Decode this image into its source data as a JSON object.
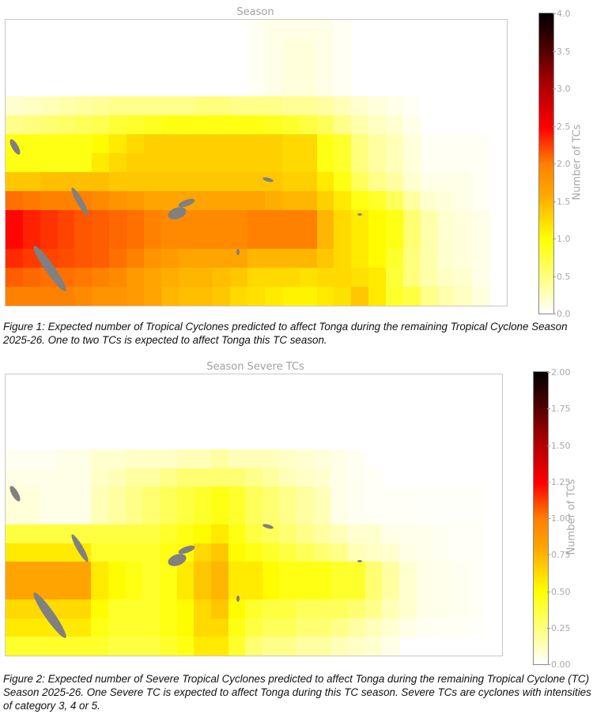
{
  "figures": [
    {
      "id": "fig1",
      "title": "Season",
      "caption": "Figure 1: Expected number of Tropical Cyclones predicted to affect Tonga during the remaining Tropical Cyclone Season 2025-26. One to two TCs is expected to affect Tonga this TC season.",
      "colorbar": {
        "label": "Number of TCs",
        "min": 0.0,
        "max": 4.0,
        "ticks": [
          "4.0",
          "3.5",
          "3.0",
          "2.5",
          "2.0",
          "1.5",
          "1.0",
          "0.5",
          "0.0"
        ]
      }
    },
    {
      "id": "fig2",
      "title": "Season Severe TCs",
      "caption": "Figure 2: Expected number of Severe Tropical Cyclones predicted to affect Tonga during the remaining Tropical Cyclone (TC) Season 2025-26. One Severe TC is expected to affect Tonga during this TC season. Severe TCs are cyclones with intensities of category 3, 4 or 5.",
      "colorbar": {
        "label": "Number of TCs",
        "min": 0.0,
        "max": 2.0,
        "ticks": [
          "2.00",
          "1.75",
          "1.50",
          "1.25",
          "1.00",
          "0.75",
          "0.50",
          "0.25",
          "0.00"
        ]
      }
    }
  ],
  "chart_data": [
    {
      "type": "heatmap",
      "title": "Season",
      "colorbar_label": "Number of TCs",
      "vmin": 0.0,
      "vmax": 4.0,
      "colormap": "hot_r",
      "note": "Gridded expected TC counts over SW Pacific; rows top-to-bottom, columns left-to-right (approx. 0 = blank/white).",
      "grid": [
        [
          0,
          0,
          0,
          0,
          0,
          0,
          0,
          0,
          0,
          0,
          0,
          0,
          0,
          0,
          0.05,
          0.1,
          0.1,
          0.1,
          0.1,
          0.05,
          0,
          0,
          0,
          0,
          0,
          0,
          0,
          0,
          0
        ],
        [
          0,
          0,
          0,
          0,
          0,
          0,
          0,
          0,
          0,
          0,
          0,
          0,
          0,
          0,
          0.05,
          0.1,
          0.15,
          0.15,
          0.1,
          0.05,
          0,
          0,
          0,
          0,
          0,
          0,
          0,
          0,
          0
        ],
        [
          0,
          0,
          0,
          0,
          0,
          0,
          0,
          0,
          0,
          0,
          0,
          0,
          0,
          0,
          0.05,
          0.1,
          0.15,
          0.15,
          0.1,
          0.05,
          0,
          0,
          0,
          0,
          0,
          0,
          0,
          0,
          0
        ],
        [
          0,
          0,
          0,
          0,
          0,
          0,
          0,
          0,
          0,
          0,
          0,
          0,
          0,
          0,
          0.05,
          0.1,
          0.15,
          0.15,
          0.1,
          0.05,
          0,
          0,
          0,
          0,
          0,
          0,
          0,
          0,
          0
        ],
        [
          0.2,
          0.25,
          0.3,
          0.35,
          0.4,
          0.45,
          0.5,
          0.5,
          0.5,
          0.5,
          0.5,
          0.55,
          0.55,
          0.5,
          0.5,
          0.5,
          0.45,
          0.45,
          0.4,
          0.3,
          0.2,
          0.15,
          0.1,
          0.05,
          0,
          0,
          0,
          0,
          0
        ],
        [
          0.5,
          0.55,
          0.6,
          0.65,
          0.7,
          0.75,
          0.85,
          0.9,
          0.95,
          1.0,
          1.0,
          1.0,
          1.0,
          1.0,
          1.0,
          0.95,
          0.9,
          0.8,
          0.7,
          0.5,
          0.35,
          0.25,
          0.2,
          0.1,
          0,
          0,
          0,
          0,
          0
        ],
        [
          1.0,
          1.0,
          1.0,
          1.0,
          1.0,
          1.1,
          1.2,
          1.3,
          1.35,
          1.35,
          1.35,
          1.35,
          1.35,
          1.35,
          1.35,
          1.35,
          1.3,
          1.3,
          1.0,
          0.9,
          0.55,
          0.4,
          0.3,
          0.15,
          0.05,
          0.05,
          0.05,
          0.05,
          0
        ],
        [
          1.0,
          1.0,
          1.0,
          1.0,
          1.0,
          1.2,
          1.3,
          1.35,
          1.35,
          1.35,
          1.35,
          1.35,
          1.35,
          1.35,
          1.35,
          1.35,
          1.3,
          1.3,
          1.0,
          0.9,
          0.55,
          0.4,
          0.3,
          0.15,
          0.05,
          0.05,
          0.05,
          0.05,
          0
        ],
        [
          1.4,
          1.4,
          1.45,
          1.45,
          1.45,
          1.45,
          1.4,
          1.4,
          1.4,
          1.4,
          1.4,
          1.4,
          1.4,
          1.4,
          1.4,
          1.4,
          1.35,
          1.35,
          1.2,
          1.0,
          0.7,
          0.5,
          0.4,
          0.2,
          0.1,
          0.1,
          0.1,
          0.05,
          0
        ],
        [
          1.9,
          1.85,
          1.8,
          1.8,
          1.8,
          1.75,
          1.7,
          1.65,
          1.6,
          1.6,
          1.6,
          1.6,
          1.6,
          1.6,
          1.6,
          1.55,
          1.5,
          1.5,
          1.35,
          1.2,
          1.0,
          0.9,
          0.7,
          0.4,
          0.2,
          0.15,
          0.1,
          0.05,
          0
        ],
        [
          2.5,
          2.35,
          2.25,
          2.15,
          2.05,
          2.0,
          1.95,
          1.9,
          1.8,
          1.75,
          1.75,
          1.75,
          1.75,
          1.75,
          1.8,
          1.8,
          1.8,
          1.8,
          1.5,
          1.3,
          1.2,
          1.1,
          1.0,
          0.6,
          0.35,
          0.2,
          0.15,
          0.1,
          0
        ],
        [
          2.5,
          2.35,
          2.25,
          2.15,
          2.05,
          2.0,
          1.95,
          1.9,
          1.8,
          1.75,
          1.75,
          1.75,
          1.75,
          1.75,
          1.8,
          1.8,
          1.8,
          1.8,
          1.5,
          1.3,
          1.2,
          1.1,
          1.0,
          0.6,
          0.35,
          0.2,
          0.15,
          0.1,
          0
        ],
        [
          2.3,
          2.2,
          2.15,
          2.1,
          2.05,
          2.0,
          1.9,
          1.8,
          1.7,
          1.65,
          1.6,
          1.6,
          1.6,
          1.6,
          1.5,
          1.5,
          1.5,
          1.5,
          1.4,
          1.3,
          1.2,
          1.1,
          0.9,
          0.55,
          0.35,
          0.2,
          0.15,
          0.1,
          0
        ],
        [
          2.0,
          1.95,
          1.9,
          1.9,
          1.85,
          1.8,
          1.75,
          1.65,
          1.6,
          1.55,
          1.5,
          1.5,
          1.45,
          1.4,
          1.3,
          1.3,
          1.3,
          1.25,
          1.3,
          1.3,
          1.25,
          1.2,
          0.85,
          0.55,
          0.35,
          0.25,
          0.2,
          0.1,
          0
        ],
        [
          1.8,
          1.8,
          1.8,
          1.8,
          1.75,
          1.7,
          1.7,
          1.65,
          1.6,
          1.5,
          1.45,
          1.45,
          1.4,
          1.3,
          1.25,
          1.2,
          1.15,
          1.15,
          1.2,
          1.25,
          1.4,
          1.2,
          0.9,
          0.8,
          0.5,
          0.35,
          0.25,
          0.15,
          0
        ]
      ]
    },
    {
      "type": "heatmap",
      "title": "Season Severe TCs",
      "colorbar_label": "Number of TCs",
      "vmin": 0.0,
      "vmax": 2.0,
      "colormap": "hot_r",
      "note": "Gridded expected severe TC counts; rows top-to-bottom, columns left-to-right.",
      "grid": [
        [
          0,
          0,
          0,
          0,
          0,
          0,
          0,
          0,
          0,
          0,
          0,
          0,
          0,
          0,
          0,
          0,
          0,
          0,
          0,
          0,
          0,
          0,
          0,
          0,
          0,
          0,
          0,
          0,
          0
        ],
        [
          0,
          0,
          0,
          0,
          0,
          0,
          0,
          0,
          0,
          0,
          0,
          0,
          0,
          0,
          0,
          0,
          0,
          0,
          0,
          0,
          0,
          0,
          0,
          0,
          0,
          0,
          0,
          0,
          0
        ],
        [
          0,
          0,
          0,
          0,
          0,
          0,
          0,
          0,
          0,
          0,
          0,
          0,
          0,
          0,
          0,
          0,
          0,
          0,
          0,
          0,
          0,
          0,
          0,
          0,
          0,
          0,
          0,
          0,
          0
        ],
        [
          0,
          0,
          0,
          0,
          0,
          0,
          0,
          0,
          0,
          0,
          0,
          0,
          0,
          0,
          0,
          0,
          0,
          0,
          0,
          0,
          0,
          0,
          0,
          0,
          0,
          0,
          0,
          0,
          0
        ],
        [
          0.03,
          0.03,
          0.03,
          0.05,
          0.05,
          0.1,
          0.1,
          0.12,
          0.12,
          0.12,
          0.15,
          0.15,
          0.2,
          0.15,
          0.15,
          0.15,
          0.12,
          0.1,
          0.08,
          0.05,
          0.03,
          0,
          0,
          0,
          0,
          0,
          0,
          0,
          0
        ],
        [
          0.05,
          0.05,
          0.05,
          0.05,
          0.05,
          0.12,
          0.15,
          0.2,
          0.2,
          0.25,
          0.3,
          0.3,
          0.3,
          0.3,
          0.25,
          0.2,
          0.15,
          0.12,
          0.1,
          0.05,
          0.03,
          0.02,
          0,
          0,
          0,
          0,
          0,
          0,
          0
        ],
        [
          0.08,
          0.08,
          0.05,
          0.05,
          0.05,
          0.15,
          0.2,
          0.25,
          0.3,
          0.35,
          0.4,
          0.45,
          0.5,
          0.45,
          0.35,
          0.3,
          0.25,
          0.2,
          0.15,
          0.05,
          0.03,
          0.02,
          0.02,
          0.02,
          0.01,
          0.01,
          0.01,
          0.01,
          0
        ],
        [
          0.08,
          0.08,
          0.05,
          0.05,
          0.05,
          0.15,
          0.2,
          0.25,
          0.3,
          0.35,
          0.4,
          0.45,
          0.5,
          0.45,
          0.35,
          0.3,
          0.25,
          0.2,
          0.15,
          0.05,
          0.03,
          0.02,
          0.02,
          0.02,
          0.01,
          0.01,
          0.01,
          0.01,
          0
        ],
        [
          0.4,
          0.4,
          0.4,
          0.4,
          0.4,
          0.4,
          0.4,
          0.4,
          0.4,
          0.45,
          0.5,
          0.55,
          0.6,
          0.5,
          0.4,
          0.35,
          0.3,
          0.25,
          0.2,
          0.15,
          0.1,
          0.1,
          0.05,
          0.04,
          0.04,
          0.03,
          0.02,
          0.02,
          0
        ],
        [
          0.6,
          0.6,
          0.6,
          0.6,
          0.6,
          0.45,
          0.45,
          0.45,
          0.45,
          0.5,
          0.55,
          0.65,
          0.7,
          0.55,
          0.5,
          0.45,
          0.4,
          0.35,
          0.3,
          0.25,
          0.15,
          0.12,
          0.1,
          0.06,
          0.04,
          0.03,
          0.02,
          0.02,
          0
        ],
        [
          0.8,
          0.8,
          0.8,
          0.8,
          0.8,
          0.6,
          0.55,
          0.5,
          0.45,
          0.5,
          0.6,
          0.7,
          0.75,
          0.6,
          0.6,
          0.55,
          0.5,
          0.5,
          0.5,
          0.45,
          0.45,
          0.3,
          0.2,
          0.1,
          0.05,
          0.04,
          0.03,
          0.02,
          0
        ],
        [
          0.8,
          0.8,
          0.8,
          0.8,
          0.8,
          0.6,
          0.55,
          0.5,
          0.45,
          0.5,
          0.6,
          0.7,
          0.75,
          0.6,
          0.6,
          0.55,
          0.5,
          0.5,
          0.5,
          0.45,
          0.45,
          0.3,
          0.2,
          0.1,
          0.05,
          0.04,
          0.03,
          0.02,
          0
        ],
        [
          0.65,
          0.65,
          0.65,
          0.65,
          0.65,
          0.55,
          0.45,
          0.45,
          0.45,
          0.5,
          0.55,
          0.65,
          0.7,
          0.55,
          0.45,
          0.4,
          0.4,
          0.35,
          0.35,
          0.35,
          0.3,
          0.25,
          0.15,
          0.1,
          0.05,
          0.04,
          0.03,
          0.02,
          0
        ],
        [
          0.6,
          0.6,
          0.6,
          0.6,
          0.6,
          0.5,
          0.45,
          0.45,
          0.45,
          0.5,
          0.55,
          0.65,
          0.65,
          0.5,
          0.4,
          0.35,
          0.35,
          0.3,
          0.3,
          0.25,
          0.2,
          0.15,
          0.1,
          0.05,
          0.03,
          0.02,
          0.02,
          0.01,
          0
        ],
        [
          0.45,
          0.45,
          0.45,
          0.45,
          0.45,
          0.45,
          0.4,
          0.4,
          0.4,
          0.45,
          0.5,
          0.6,
          0.6,
          0.45,
          0.3,
          0.25,
          0.25,
          0.2,
          0.2,
          0.15,
          0.12,
          0.1,
          0.05,
          0,
          0,
          0,
          0,
          0,
          0
        ]
      ]
    }
  ]
}
